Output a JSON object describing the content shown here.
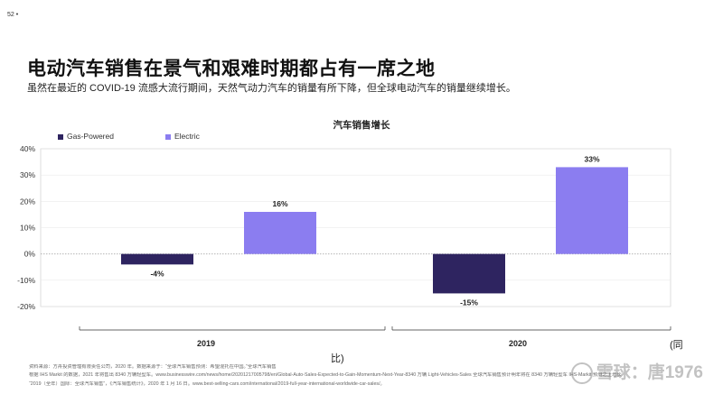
{
  "page": {
    "number": "52 •",
    "title": "电动汽车销售在景气和艰难时期都占有一席之地",
    "subtitle": "虽然在最近的 COVID-19 流感大流行期间，天然气动力汽车的销量有所下降，但全球电动汽车的销量继续增长。",
    "tail_text": "(同",
    "tail_text2": "比)",
    "source_line1": "根据 IHS Markit 的数据，2021 年将售出 8340 万辆轻型车。www.businesswire.com/news/home/20201217005798/en/Global-Auto-Sales-Expected-to-Gain-Momentum-Next-Year-8340 万辆 Light-Vehicles-Sales 全球汽车销售预计明年将在 8340 万辆轻型车 IHS-Markit 预测之上增长",
    "source_line2": "资料来源：方舟投资管理有限责任公司，2020 年。数据来源于：“全球汽车销售预测：希望混托在中国。”全球汽车销售",
    "source_line3": "“2019（全年）国际：全球汽车销售”，《汽车销售统计》，2020 年 1 月 16 日。www.best-selling-cars.com/international/2019-full-year-international-worldwide-car-sales/。",
    "watermark": "雪球：唐1976"
  },
  "colors": {
    "gas": "#2e2460",
    "electric": "#8b7df0",
    "grid": "#bdbdbd",
    "zero_line": "#aaaaaa",
    "frame": "#d0d0d0"
  },
  "chart_data": {
    "type": "bar",
    "title": "汽车销售增长",
    "categories": [
      "2019",
      "2020"
    ],
    "series": [
      {
        "name": "Gas-Powered",
        "values": [
          -4,
          -15
        ],
        "labels": [
          "-4%",
          "-15%"
        ]
      },
      {
        "name": "Electric",
        "values": [
          16,
          33
        ],
        "labels": [
          "16%",
          "33%"
        ]
      }
    ],
    "ylim": [
      -20,
      40
    ],
    "yticks": [
      40,
      30,
      20,
      10,
      0,
      -10,
      -20
    ],
    "ytick_labels": [
      "40%",
      "30%",
      "20%",
      "10%",
      "0%",
      "-10%",
      "-20%"
    ],
    "grid": true,
    "legend": "top-left"
  }
}
